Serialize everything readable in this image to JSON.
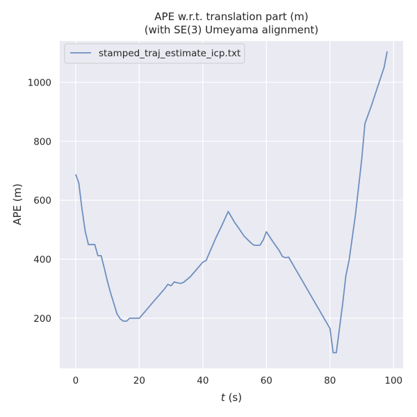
{
  "chart_data": {
    "type": "line",
    "title_line1": "APE w.r.t. translation part (m)",
    "title_line2": "(with SE(3) Umeyama alignment)",
    "xlabel_var": "t",
    "xlabel_unit": " (s)",
    "ylabel": "APE (m)",
    "xlim": [
      -5,
      103
    ],
    "ylim": [
      30,
      1140
    ],
    "xticks": [
      0,
      20,
      40,
      60,
      80,
      100
    ],
    "yticks": [
      200,
      400,
      600,
      800,
      1000
    ],
    "grid": true,
    "legend_position": "top-left",
    "series": [
      {
        "name": "stamped_traj_estimate_icp.txt",
        "color": "#6c8ebf",
        "x": [
          0,
          1,
          2,
          3,
          4,
          5,
          6,
          7,
          8,
          9,
          10,
          11,
          12,
          13,
          14,
          15,
          16,
          17,
          18,
          19,
          20,
          22,
          24,
          26,
          28,
          29,
          30,
          31,
          32,
          33,
          34,
          36,
          38,
          40,
          41,
          44,
          46,
          48,
          50,
          51,
          53,
          55,
          56,
          57,
          58,
          59,
          60,
          62,
          64,
          65,
          66,
          67,
          80,
          81,
          82,
          84,
          85,
          86,
          88,
          90,
          91,
          93,
          95,
          97,
          98
        ],
        "y": [
          688,
          658,
          570,
          495,
          450,
          450,
          450,
          412,
          412,
          370,
          325,
          285,
          250,
          215,
          198,
          190,
          190,
          200,
          200,
          200,
          200,
          225,
          250,
          275,
          300,
          315,
          310,
          323,
          320,
          318,
          322,
          340,
          365,
          390,
          395,
          470,
          515,
          562,
          525,
          510,
          478,
          457,
          448,
          447,
          448,
          465,
          493,
          460,
          430,
          410,
          405,
          407,
          165,
          83,
          83,
          250,
          345,
          395,
          550,
          740,
          860,
          920,
          985,
          1050,
          1105
        ]
      }
    ]
  }
}
